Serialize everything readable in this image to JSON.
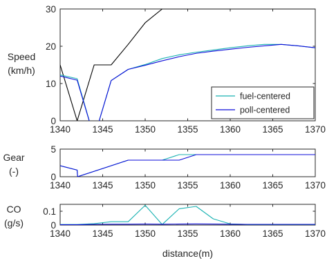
{
  "chart_data": [
    {
      "type": "line",
      "ylabel": [
        "Speed",
        "(km/h)"
      ],
      "xlim": [
        1340,
        1370
      ],
      "ylim": [
        0,
        30
      ],
      "xticks": [
        1340,
        1345,
        1350,
        1355,
        1360,
        1365,
        1370
      ],
      "yticks": [
        0,
        10,
        20,
        30
      ],
      "legend": {
        "position": "bottom-right",
        "entries": [
          "fuel-centered",
          "poll-centered"
        ]
      },
      "series": [
        {
          "color": "#000000",
          "x": [
            1340,
            1342,
            1344,
            1346,
            1348,
            1350,
            1352,
            1354,
            1356,
            1358,
            1360,
            1362,
            1364,
            1366,
            1368,
            1370
          ],
          "y": [
            15,
            0,
            15,
            15,
            20.5,
            26.3,
            30,
            30,
            30,
            30,
            30,
            30,
            30,
            30,
            30,
            30
          ]
        },
        {
          "name": "fuel-centered",
          "color": "#19b2b2",
          "x": [
            1340,
            1342,
            1344,
            1346,
            1348,
            1350,
            1352,
            1354,
            1356,
            1358,
            1360,
            1362,
            1364,
            1366,
            1368,
            1370
          ],
          "y": [
            12.3,
            11.3,
            -4.5,
            10.8,
            13.8,
            15.1,
            16.7,
            17.7,
            18.4,
            19,
            19.6,
            20.1,
            20.5,
            20.5,
            20.1,
            19.6
          ]
        },
        {
          "name": "poll-centered",
          "color": "#0a0ad9",
          "x": [
            1340,
            1342,
            1344,
            1346,
            1348,
            1350,
            1352,
            1354,
            1356,
            1358,
            1360,
            1362,
            1364,
            1366,
            1368,
            1370
          ],
          "y": [
            12,
            10.9,
            -4.5,
            10.8,
            13.8,
            14.9,
            16.1,
            17.2,
            18.1,
            18.7,
            19.2,
            19.7,
            20.1,
            20.5,
            20.1,
            19.6
          ]
        }
      ]
    },
    {
      "type": "line",
      "ylabel": [
        "Gear",
        "(-)"
      ],
      "xlim": [
        1340,
        1370
      ],
      "ylim": [
        0,
        5
      ],
      "xticks": [
        1340,
        1345,
        1350,
        1355,
        1360,
        1365,
        1370
      ],
      "yticks": [
        0,
        5
      ],
      "series": [
        {
          "name": "fuel-centered",
          "color": "#19b2b2",
          "x": [
            1340,
            1342,
            1342.05,
            1348,
            1352,
            1354,
            1356,
            1370
          ],
          "y": [
            2,
            1.2,
            0,
            3,
            3,
            4,
            4,
            4
          ]
        },
        {
          "name": "poll-centered",
          "color": "#0a0ad9",
          "x": [
            1340,
            1342,
            1342.05,
            1348,
            1354,
            1356,
            1370
          ],
          "y": [
            2,
            1.2,
            0,
            3,
            3,
            4,
            4
          ]
        }
      ]
    },
    {
      "type": "line",
      "ylabel": [
        "CO",
        "(g/s)"
      ],
      "xlabel": "distance(m)",
      "xlim": [
        1340,
        1370
      ],
      "ylim": [
        0,
        0.15
      ],
      "xticks": [
        1340,
        1345,
        1350,
        1355,
        1360,
        1365,
        1370
      ],
      "yticks": [
        0,
        0.1
      ],
      "ytick_labels": [
        "0",
        "0.1"
      ],
      "series": [
        {
          "name": "fuel-centered",
          "color": "#19b2b2",
          "x": [
            1340,
            1342,
            1344,
            1346,
            1348,
            1350,
            1352,
            1354,
            1356,
            1358,
            1360,
            1362,
            1364,
            1366,
            1368,
            1370
          ],
          "y": [
            0.004,
            0.004,
            0.01,
            0.024,
            0.024,
            0.143,
            0.004,
            0.118,
            0.135,
            0.045,
            0.008,
            0.004,
            0.004,
            0.004,
            0.004,
            0.004
          ]
        },
        {
          "name": "poll-centered",
          "color": "#0a0ad9",
          "x": [
            1340,
            1342,
            1344,
            1346,
            1348,
            1350,
            1352,
            1354,
            1356,
            1358,
            1360,
            1362,
            1364,
            1366,
            1368,
            1370
          ],
          "y": [
            0.002,
            0.002,
            0.005,
            0.006,
            0.006,
            0.007,
            0.006,
            0.007,
            0.008,
            0.007,
            0.006,
            0.005,
            0.005,
            0.005,
            0.005,
            0.005
          ]
        }
      ]
    }
  ]
}
